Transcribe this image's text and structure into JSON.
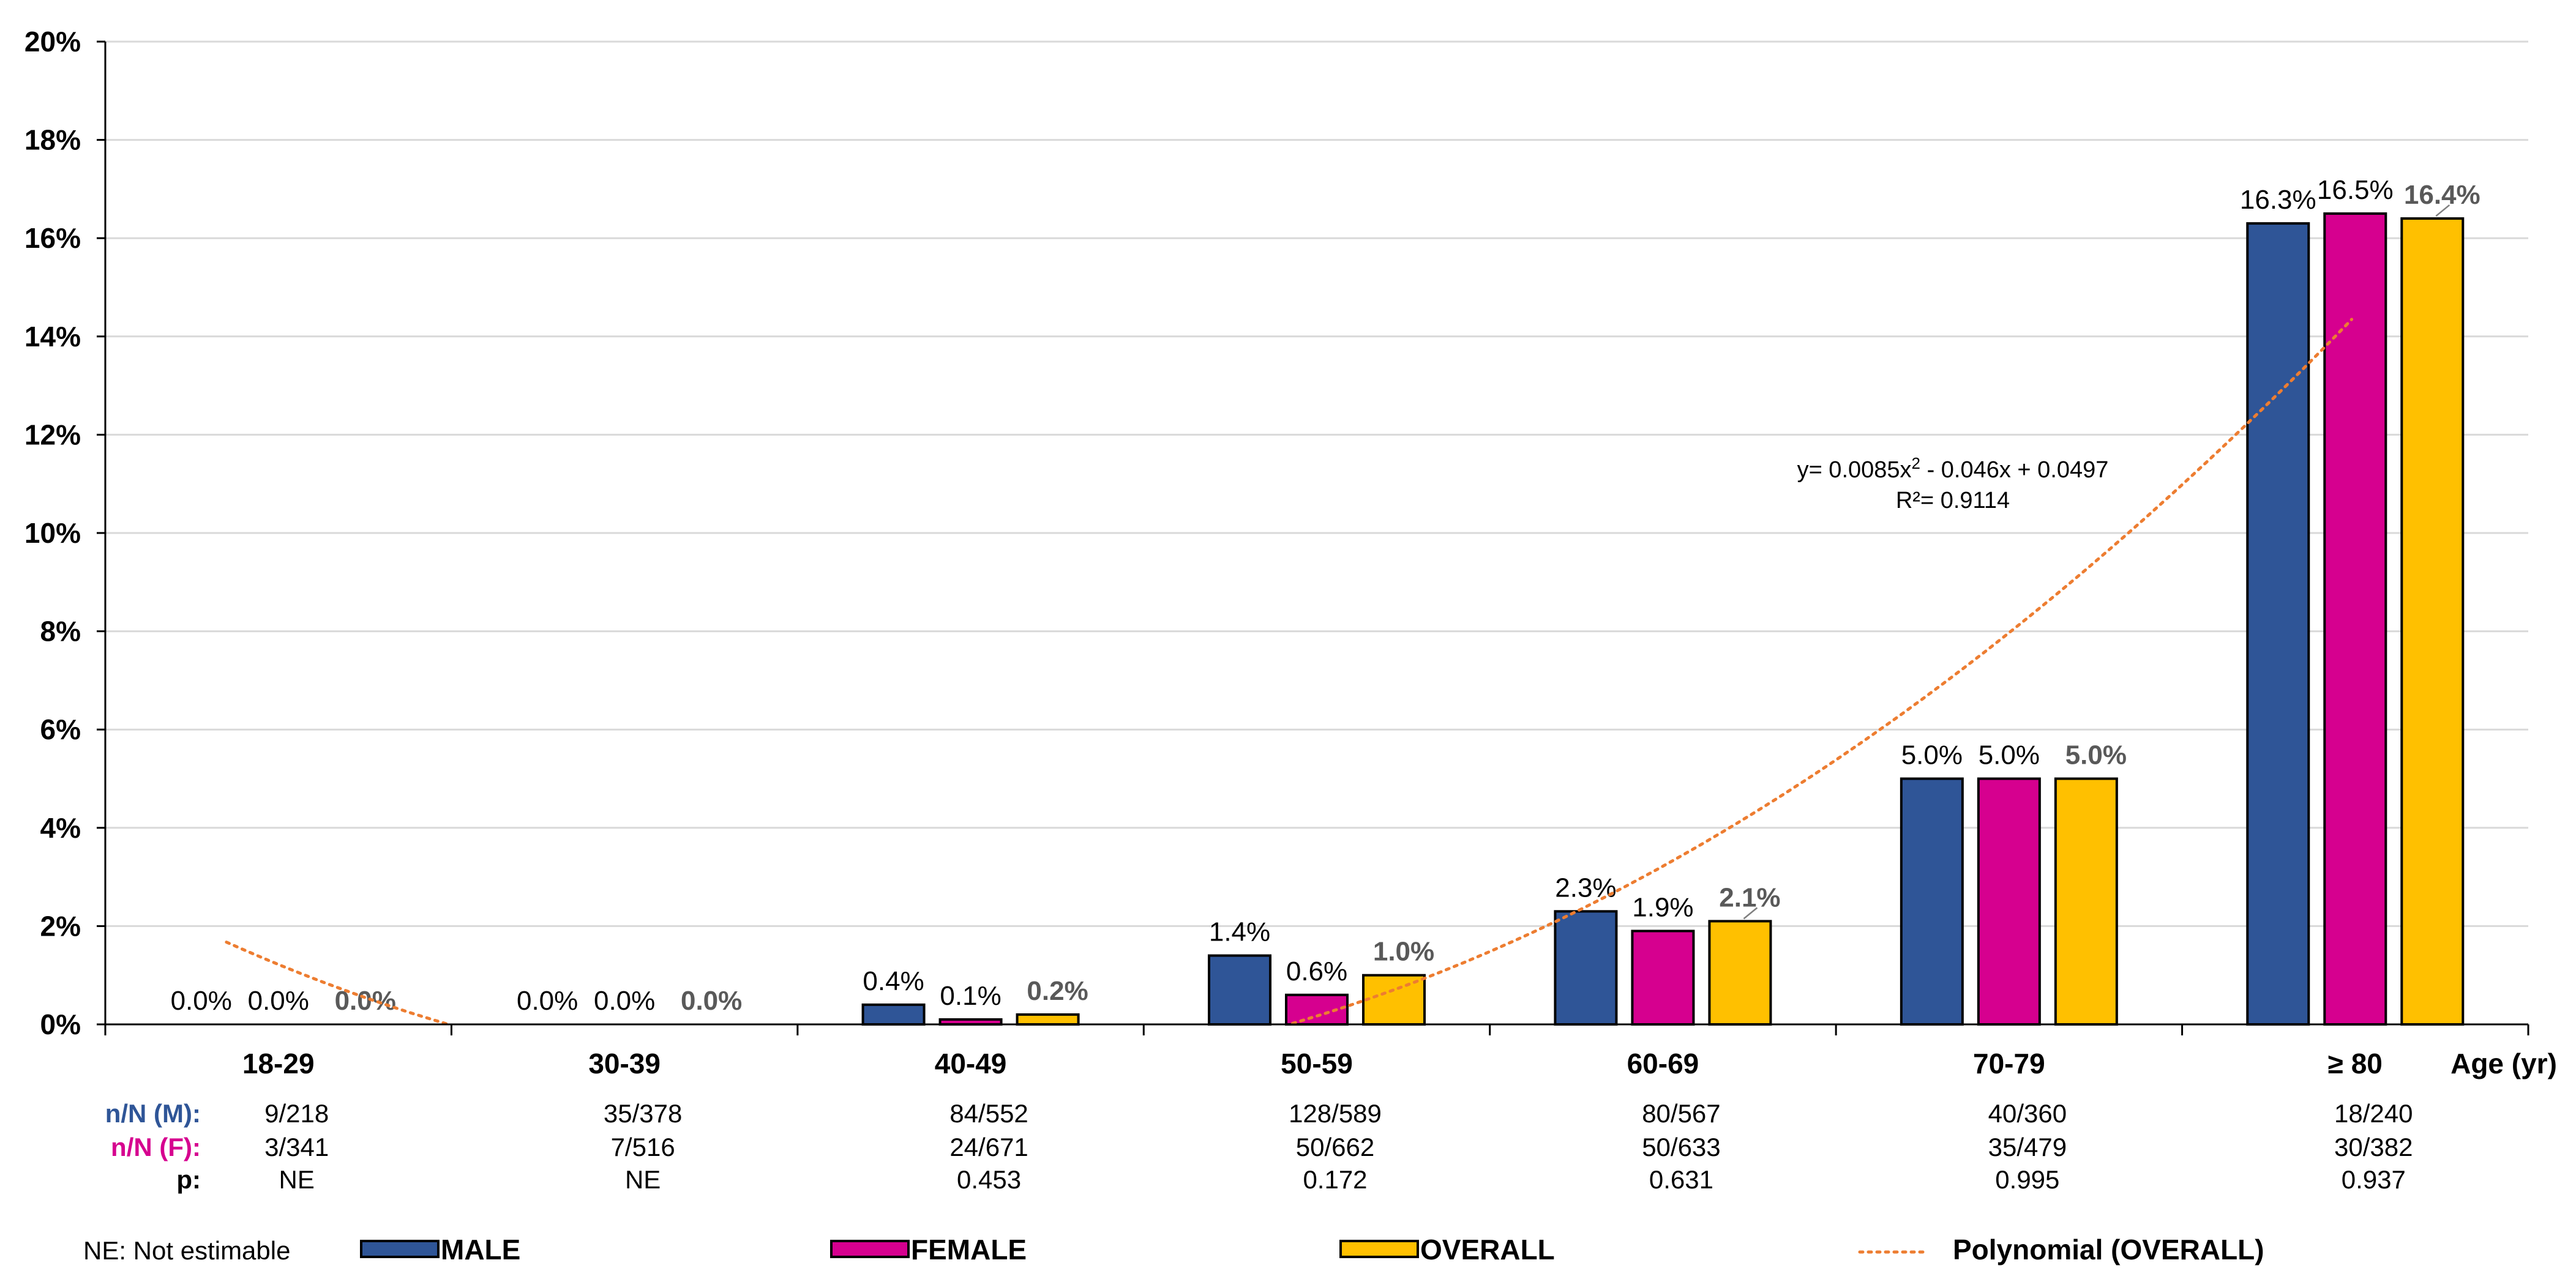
{
  "chart_data": {
    "type": "bar",
    "categories": [
      "18-29",
      "30-39",
      "40-49",
      "50-59",
      "60-69",
      "70-79",
      "≥ 80"
    ],
    "xlabel": "Age (yr)",
    "ylabel": "",
    "ylim": [
      0,
      20
    ],
    "yticks": [
      "0%",
      "2%",
      "4%",
      "6%",
      "8%",
      "10%",
      "12%",
      "14%",
      "16%",
      "18%",
      "20%"
    ],
    "grid": true,
    "series": [
      {
        "name": "MALE",
        "color": "#2F5597",
        "values": [
          0.0,
          0.0,
          0.4,
          1.4,
          2.3,
          5.0,
          16.3
        ],
        "labels": [
          "0.0%",
          "0.0%",
          "0.4%",
          "1.4%",
          "2.3%",
          "5.0%",
          "16.3%"
        ]
      },
      {
        "name": "FEMALE",
        "color": "#D6008F",
        "values": [
          0.0,
          0.0,
          0.1,
          0.6,
          1.9,
          5.0,
          16.5
        ],
        "labels": [
          "0.0%",
          "0.0%",
          "0.1%",
          "0.6%",
          "1.9%",
          "5.0%",
          "16.5%"
        ]
      },
      {
        "name": "OVERALL",
        "color": "#FFC000",
        "values": [
          0.0,
          0.0,
          0.2,
          1.0,
          2.1,
          5.0,
          16.4
        ],
        "labels": [
          "0.0%",
          "0.0%",
          "0.2%",
          "1.0%",
          "2.1%",
          "5.0%",
          "16.4%"
        ]
      }
    ],
    "trendline": {
      "name": "Polynomial  (OVERALL)",
      "color": "#ED7D31",
      "coefficients": [
        0.0085,
        -0.046,
        0.0497
      ],
      "equation_prefix": "y= 0.0085x",
      "equation_sup": "2",
      "equation_suffix": " - 0.046x + 0.0497",
      "r2_text": "R²= 0.9114"
    },
    "table": {
      "rows": [
        {
          "label": "n/N (M):",
          "color": "#2F5597",
          "values": [
            "9/218",
            "35/378",
            "84/552",
            "128/589",
            "80/567",
            "40/360",
            "18/240"
          ]
        },
        {
          "label": "n/N (F):",
          "color": "#D6008F",
          "values": [
            "3/341",
            "7/516",
            "24/671",
            "50/662",
            "50/633",
            "35/479",
            "30/382"
          ]
        },
        {
          "label": "p:",
          "color": "#000000",
          "values": [
            "NE",
            "NE",
            "0.453",
            "0.172",
            "0.631",
            "0.995",
            "0.937"
          ]
        }
      ]
    },
    "legend": {
      "note": "NE: Not estimable",
      "items": [
        "MALE",
        "FEMALE",
        "OVERALL"
      ],
      "trend_label": "Polynomial  (OVERALL)"
    }
  }
}
